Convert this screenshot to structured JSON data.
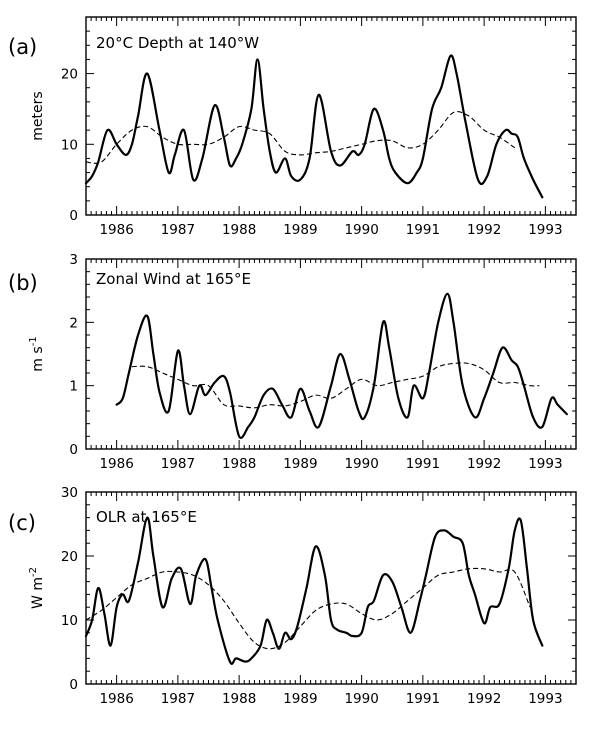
{
  "chart_data": [
    {
      "type": "line",
      "panel_label": "(a)",
      "title": "20°C Depth at 140°W",
      "ylabel": "meters",
      "ylim": [
        0,
        28
      ],
      "yticks": [
        0,
        10,
        20
      ],
      "xlim": [
        1985.5,
        1993.5
      ],
      "xtick_labels": [
        "1986",
        "1987",
        "1988",
        "1989",
        "1990",
        "1991",
        "1992",
        "1993"
      ],
      "series": [
        {
          "style": "solid",
          "x": [
            1985.5,
            1985.6,
            1985.7,
            1985.85,
            1986.0,
            1986.15,
            1986.25,
            1986.35,
            1986.5,
            1986.7,
            1986.85,
            1986.95,
            1987.1,
            1987.25,
            1987.4,
            1987.6,
            1987.75,
            1987.85,
            1987.95,
            1988.05,
            1988.2,
            1988.3,
            1988.4,
            1988.5,
            1988.6,
            1988.75,
            1988.85,
            1989.0,
            1989.15,
            1989.3,
            1989.5,
            1989.65,
            1989.85,
            1989.95,
            1990.05,
            1990.2,
            1990.35,
            1990.45,
            1990.55,
            1990.75,
            1990.9,
            1991.0,
            1991.15,
            1991.3,
            1991.45,
            1991.55,
            1991.7,
            1991.9,
            1992.05,
            1992.2,
            1992.35,
            1992.45,
            1992.55,
            1992.65,
            1992.8,
            1992.95
          ],
          "y": [
            4.5,
            5.5,
            7.5,
            12,
            10,
            8.5,
            10,
            14,
            20,
            12,
            6,
            8.5,
            12,
            5,
            8,
            15.5,
            11,
            7,
            8,
            10,
            15,
            22,
            15,
            9,
            6,
            8,
            5.5,
            5,
            8,
            17,
            9,
            7,
            9,
            8.5,
            10,
            15,
            12,
            8,
            6,
            4.5,
            6,
            8,
            15,
            18,
            22.5,
            20,
            13,
            5,
            5.5,
            10,
            12,
            11.5,
            11,
            8,
            5,
            2.5
          ]
        },
        {
          "style": "dashed",
          "x": [
            1985.5,
            1985.75,
            1986.0,
            1986.25,
            1986.5,
            1986.75,
            1987.0,
            1987.25,
            1987.5,
            1987.75,
            1988.0,
            1988.25,
            1988.5,
            1988.75,
            1989.0,
            1989.25,
            1989.5,
            1989.75,
            1990.0,
            1990.25,
            1990.5,
            1990.75,
            1991.0,
            1991.25,
            1991.5,
            1991.75,
            1992.0,
            1992.25,
            1992.5
          ],
          "y": [
            7.5,
            7.5,
            10,
            12,
            12.5,
            11,
            10,
            10,
            10,
            11,
            12.5,
            12,
            11.5,
            9,
            8.5,
            8.8,
            9,
            9.5,
            10,
            10.5,
            10.5,
            9.5,
            10,
            12,
            14.5,
            14,
            12,
            11,
            9.5
          ]
        }
      ]
    },
    {
      "type": "line",
      "panel_label": "(b)",
      "title": "Zonal Wind at 165°E",
      "ylabel": "m s",
      "ylabel_sup": "-1",
      "ylim": [
        0,
        3
      ],
      "yticks": [
        0,
        1,
        2,
        3
      ],
      "xlim": [
        1985.5,
        1993.5
      ],
      "xtick_labels": [
        "1986",
        "1987",
        "1988",
        "1989",
        "1990",
        "1991",
        "1992",
        "1993"
      ],
      "series": [
        {
          "style": "solid",
          "x": [
            1986.0,
            1986.1,
            1986.2,
            1986.35,
            1986.5,
            1986.6,
            1986.7,
            1986.85,
            1987.0,
            1987.1,
            1987.2,
            1987.35,
            1987.45,
            1987.6,
            1987.75,
            1987.85,
            1988.0,
            1988.15,
            1988.25,
            1988.4,
            1988.55,
            1988.7,
            1988.85,
            1989.0,
            1989.15,
            1989.3,
            1989.5,
            1989.65,
            1989.8,
            1989.95,
            1990.05,
            1990.2,
            1990.35,
            1990.45,
            1990.6,
            1990.75,
            1990.85,
            1991.0,
            1991.1,
            1991.25,
            1991.4,
            1991.5,
            1991.65,
            1991.85,
            1992.0,
            1992.15,
            1992.3,
            1992.45,
            1992.55,
            1992.65,
            1992.8,
            1992.95,
            1993.1,
            1993.2,
            1993.35
          ],
          "y": [
            0.7,
            0.8,
            1.2,
            1.8,
            2.1,
            1.5,
            0.9,
            0.6,
            1.55,
            1.0,
            0.55,
            1.0,
            0.85,
            1.05,
            1.15,
            0.9,
            0.2,
            0.35,
            0.5,
            0.85,
            0.95,
            0.7,
            0.5,
            0.95,
            0.6,
            0.35,
            1.0,
            1.5,
            1.1,
            0.6,
            0.5,
            1.0,
            2.0,
            1.6,
            0.8,
            0.5,
            1.0,
            0.8,
            1.2,
            2.0,
            2.45,
            2.0,
            1.0,
            0.5,
            0.8,
            1.2,
            1.6,
            1.4,
            1.3,
            1.0,
            0.5,
            0.35,
            0.8,
            0.7,
            0.55
          ]
        },
        {
          "style": "dashed",
          "x": [
            1986.25,
            1986.5,
            1986.75,
            1987.0,
            1987.25,
            1987.5,
            1987.75,
            1988.0,
            1988.25,
            1988.5,
            1988.75,
            1989.0,
            1989.25,
            1989.5,
            1989.75,
            1990.0,
            1990.25,
            1990.5,
            1990.75,
            1991.0,
            1991.25,
            1991.5,
            1991.75,
            1992.0,
            1992.25,
            1992.5,
            1992.75,
            1992.9
          ],
          "y": [
            1.3,
            1.3,
            1.2,
            1.1,
            1.0,
            1.0,
            0.7,
            0.68,
            0.65,
            0.7,
            0.68,
            0.75,
            0.85,
            0.8,
            0.95,
            1.1,
            1.0,
            1.05,
            1.1,
            1.15,
            1.3,
            1.35,
            1.35,
            1.25,
            1.05,
            1.05,
            1.0,
            1.0
          ]
        }
      ]
    },
    {
      "type": "line",
      "panel_label": "(c)",
      "title": "OLR at 165°E",
      "ylabel": "W m",
      "ylabel_sup": "-2",
      "ylim": [
        0,
        30
      ],
      "yticks": [
        0,
        10,
        20,
        30
      ],
      "xlim": [
        1985.5,
        1993.5
      ],
      "xtick_labels": [
        "1986",
        "1987",
        "1988",
        "1989",
        "1990",
        "1991",
        "1992",
        "1993"
      ],
      "series": [
        {
          "style": "solid",
          "x": [
            1985.5,
            1985.6,
            1985.7,
            1985.8,
            1985.9,
            1986.0,
            1986.1,
            1986.2,
            1986.35,
            1986.5,
            1986.6,
            1986.75,
            1986.9,
            1987.05,
            1987.2,
            1987.3,
            1987.45,
            1987.55,
            1987.65,
            1987.85,
            1987.95,
            1988.1,
            1988.2,
            1988.35,
            1988.45,
            1988.55,
            1988.65,
            1988.75,
            1988.85,
            1988.95,
            1989.1,
            1989.25,
            1989.4,
            1989.5,
            1989.6,
            1989.75,
            1989.85,
            1990.0,
            1990.1,
            1990.2,
            1990.35,
            1990.5,
            1990.65,
            1990.8,
            1990.95,
            1991.05,
            1991.2,
            1991.35,
            1991.5,
            1991.65,
            1991.75,
            1991.85,
            1992.0,
            1992.1,
            1992.25,
            1992.4,
            1992.5,
            1992.6,
            1992.7,
            1992.8,
            1992.95
          ],
          "y": [
            7.5,
            10,
            15,
            11,
            6,
            12,
            14,
            13,
            19,
            26,
            20,
            12,
            16.5,
            18,
            12.5,
            17,
            19.5,
            15,
            10,
            3.5,
            4,
            3.5,
            4,
            6,
            10,
            8,
            5.5,
            8,
            7,
            9,
            15,
            21.5,
            17,
            10,
            8.5,
            8,
            7.5,
            8,
            12,
            13,
            17,
            16,
            12,
            8,
            13,
            17,
            23,
            24,
            23,
            22,
            17,
            14,
            9.5,
            12,
            12.5,
            18,
            24,
            25.5,
            18,
            10,
            6
          ]
        },
        {
          "style": "dashed",
          "x": [
            1985.5,
            1985.75,
            1986.0,
            1986.25,
            1986.5,
            1986.75,
            1987.0,
            1987.25,
            1987.5,
            1987.75,
            1988.0,
            1988.25,
            1988.5,
            1988.75,
            1989.0,
            1989.25,
            1989.5,
            1989.75,
            1990.0,
            1990.25,
            1990.5,
            1990.75,
            1991.0,
            1991.25,
            1991.5,
            1991.75,
            1992.0,
            1992.25,
            1992.5,
            1992.75
          ],
          "y": [
            10,
            11.5,
            13.5,
            15.5,
            16.5,
            17.5,
            17.5,
            17,
            15.5,
            13,
            9.5,
            6.5,
            5.5,
            6.5,
            9,
            11.5,
            12.5,
            12.5,
            11,
            10,
            11,
            13,
            15,
            17,
            17.5,
            18,
            18,
            17.5,
            17.5,
            12
          ]
        }
      ]
    }
  ]
}
